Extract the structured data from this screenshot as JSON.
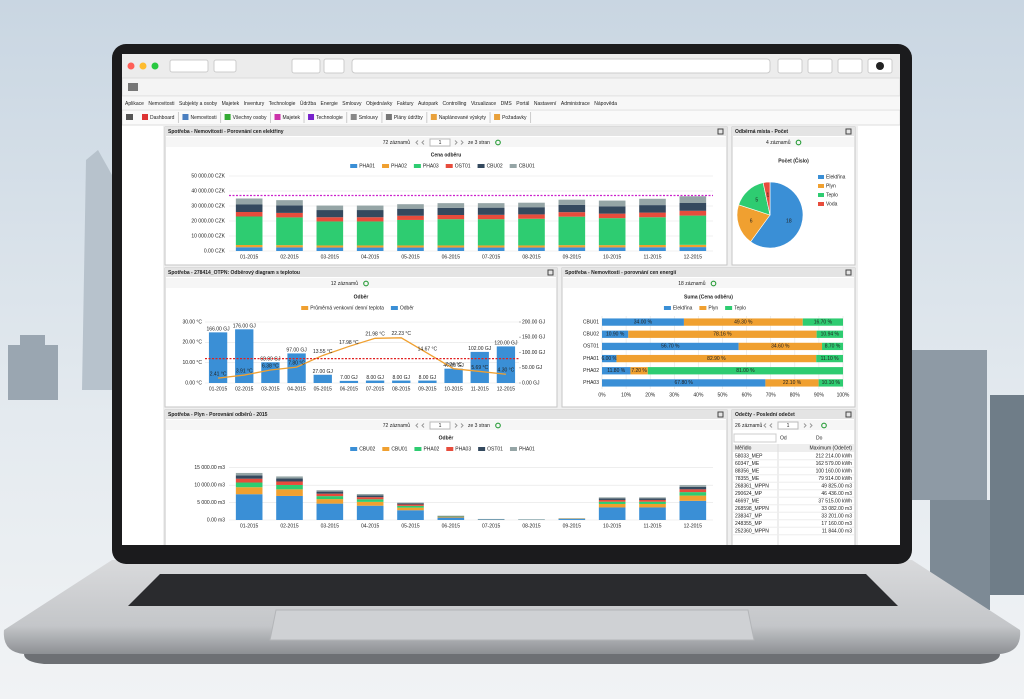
{
  "menu": [
    "Aplikace",
    "Nemovitosti",
    "Subjekty a osoby",
    "Majetek",
    "Inventury",
    "Technologie",
    "Údržba",
    "Energie",
    "Smlouvy",
    "Objednávky",
    "Faktury",
    "Autopark",
    "Controlling",
    "Vizualizace",
    "DMS",
    "Portál",
    "Nastavení",
    "Administrace",
    "Nápověda"
  ],
  "toolbar": [
    "Dashboard",
    "Nemovitosti",
    "Všechny osoby",
    "Majetek",
    "Technologie",
    "Smlouvy",
    "Plány údržby",
    "Naplánované výskyty",
    "Požadavky"
  ],
  "panels": [
    {
      "title": "Spotřeba - Nemovitosti - Porovnání cen elektřiny",
      "pager": {
        "count": "72 záznamů",
        "page": "1",
        "pages": "ze 3 stran"
      }
    },
    {
      "title": "Odběrná místa - Počet",
      "pager": {
        "count": "4 záznamů"
      }
    },
    {
      "title": "Spotřeba - 278414_OTPN: Odběrový diagram s teplotou",
      "pager": {
        "count": "12 záznamů"
      }
    },
    {
      "title": "Spotřeba - Nemovitosti - porovnání cen energií",
      "pager": {
        "count": "18 záznamů"
      }
    },
    {
      "title": "Spotřeba - Plyn - Porovnání odběrů - 2015",
      "pager": {
        "count": "72 záznamů",
        "page": "1",
        "pages": "ze 3 stran"
      }
    },
    {
      "title": "Odečty - Poslední odečet",
      "pager": {
        "count": "26 záznamů",
        "page": "1"
      }
    }
  ],
  "chart_data": [
    {
      "type": "bar",
      "stacked": true,
      "title": "Cena odběru",
      "categories": [
        "01-2015",
        "02-2015",
        "03-2015",
        "04-2015",
        "05-2015",
        "06-2015",
        "07-2015",
        "08-2015",
        "09-2015",
        "10-2015",
        "11-2015",
        "12-2015"
      ],
      "series": [
        {
          "name": "PHA01",
          "color": "#3a8fd6",
          "values": [
            2500,
            2400,
            2300,
            2300,
            2300,
            2300,
            2300,
            2300,
            2400,
            2400,
            2500,
            2600
          ]
        },
        {
          "name": "PHA02",
          "color": "#f0a030",
          "values": [
            1500,
            1500,
            1400,
            1400,
            1400,
            1400,
            1400,
            1400,
            1500,
            1500,
            1500,
            1500
          ]
        },
        {
          "name": "PHA03",
          "color": "#2ecc71",
          "values": [
            19000,
            18500,
            16000,
            16000,
            17000,
            17500,
            17500,
            17800,
            19000,
            18000,
            18500,
            19500
          ]
        },
        {
          "name": "OST01",
          "color": "#e74c3c",
          "values": [
            3000,
            3000,
            2800,
            2800,
            2800,
            2800,
            2900,
            2900,
            3000,
            3000,
            3100,
            3200
          ]
        },
        {
          "name": "CBU02",
          "color": "#34495e",
          "values": [
            5000,
            5000,
            4800,
            4800,
            4700,
            4700,
            4800,
            4800,
            4800,
            4900,
            5000,
            5200
          ]
        },
        {
          "name": "CBU01",
          "color": "#95a5a6",
          "values": [
            4000,
            3500,
            3000,
            3000,
            3000,
            3200,
            3000,
            3000,
            3500,
            3800,
            4200,
            4500
          ]
        }
      ],
      "ylim": [
        0,
        50000
      ],
      "yticks": [
        {
          "value": 0,
          "label": "0.00 CZK"
        },
        {
          "value": 10000,
          "label": "10 000.00 CZK"
        },
        {
          "value": 20000,
          "label": "20 000.00 CZK"
        },
        {
          "value": 30000,
          "label": "30 000.00 CZK"
        },
        {
          "value": 40000,
          "label": "40 000.00 CZK"
        },
        {
          "value": 50000,
          "label": "50 000.00 CZK"
        }
      ],
      "grid": true,
      "hline": 37000,
      "hline_color": "#cc22cc"
    },
    {
      "type": "pie",
      "title": "Počet (Číslo)",
      "categories": [
        "Elektřina",
        "Plyn",
        "Teplo",
        "Voda"
      ],
      "values": [
        18,
        6,
        5,
        1
      ],
      "colors": [
        "#3a8fd6",
        "#f0a030",
        "#2ecc71",
        "#e74c3c"
      ]
    },
    {
      "type": "combo",
      "title": "Odběr",
      "categories": [
        "01-2015",
        "02-2015",
        "03-2015",
        "04-2015",
        "05-2015",
        "06-2015",
        "07-2015",
        "08-2015",
        "09-2015",
        "10-2015",
        "11-2015",
        "12-2015"
      ],
      "series": [
        {
          "name": "Průměrná venkovní denní teplota",
          "color": "#f0a030",
          "kind": "line",
          "values": [
            2.41,
            3.91,
            6.38,
            7.8,
            13.55,
            17.98,
            21.98,
            22.23,
            14.67,
            7.04,
            5.69,
            4.3
          ],
          "value_labels": [
            "2.41 °C",
            "3.91 °C",
            "6.38 °C",
            "7.80 °C",
            "13.55 °C",
            "17.98 °C",
            "21.98 °C",
            "22.23 °C",
            "14.67 °C",
            "7.04 °C",
            "5.69 °C",
            "4.30 °C"
          ]
        },
        {
          "name": "Odběr",
          "color": "#3a8fd6",
          "kind": "bar",
          "axis": "y2",
          "values": [
            166,
            176,
            68,
            97,
            27,
            7,
            8,
            8,
            8,
            47,
            102,
            120
          ],
          "value_labels": [
            "166.00 GJ",
            "176.00 GJ",
            "68.00 GJ",
            "97.00 GJ",
            "27.00 GJ",
            "7.00 GJ",
            "8.00 GJ",
            "8.00 GJ",
            "8.00 GJ",
            "47.00 GJ",
            "102.00 GJ",
            "120.00 GJ"
          ]
        }
      ],
      "ylim": [
        0,
        30
      ],
      "yticks": [
        {
          "value": 0,
          "label": "0.00 °C"
        },
        {
          "value": 10,
          "label": "10.00 °C"
        },
        {
          "value": 20,
          "label": "20.00 °C"
        },
        {
          "value": 30,
          "label": "30.00 °C"
        }
      ],
      "y2lim": [
        0,
        200
      ],
      "y2ticks": [
        {
          "value": 0,
          "label": "0.00 GJ"
        },
        {
          "value": 50,
          "label": "50.00 GJ"
        },
        {
          "value": 100,
          "label": "100.00 GJ"
        },
        {
          "value": 150,
          "label": "150.00 GJ"
        },
        {
          "value": 200,
          "label": "200.00 GJ"
        }
      ],
      "grid": true,
      "hline": 12,
      "hline_color": "#e02020"
    },
    {
      "type": "hbar",
      "stacked": true,
      "title": "Suma (Cena odběru)",
      "categories": [
        "CBU01",
        "CBU02",
        "OST01",
        "PHA01",
        "PHA02",
        "PHA03"
      ],
      "series": [
        {
          "name": "Elektřina",
          "color": "#3a8fd6",
          "values": [
            34,
            10.9,
            56.7,
            6,
            11.8,
            67.8
          ],
          "value_labels": [
            "34.00 %",
            "10.90 %",
            "56.70 %",
            "6.00 %",
            "11.80 %",
            "67.80 %"
          ]
        },
        {
          "name": "Plyn",
          "color": "#f0a030",
          "values": [
            49.3,
            78.16,
            34.6,
            82.9,
            7.2,
            22.1
          ],
          "value_labels": [
            "49.30 %",
            "78.16 %",
            "34.60 %",
            "82.90 %",
            "7.20 %",
            "22.10 %"
          ]
        },
        {
          "name": "Teplo",
          "color": "#2ecc71",
          "values": [
            16.7,
            10.94,
            8.7,
            11.1,
            81,
            10.1
          ],
          "value_labels": [
            "16.70 %",
            "10.94 %",
            "8.70 %",
            "11.10 %",
            "81.00 %",
            "10.10 %"
          ]
        }
      ],
      "xlim": [
        0,
        100
      ],
      "xticks": [
        {
          "value": 0,
          "label": "0%"
        },
        {
          "value": 10,
          "label": "10%"
        },
        {
          "value": 20,
          "label": "20%"
        },
        {
          "value": 30,
          "label": "30%"
        },
        {
          "value": 40,
          "label": "40%"
        },
        {
          "value": 50,
          "label": "50%"
        },
        {
          "value": 60,
          "label": "60%"
        },
        {
          "value": 70,
          "label": "70%"
        },
        {
          "value": 80,
          "label": "80%"
        },
        {
          "value": 90,
          "label": "90%"
        },
        {
          "value": 100,
          "label": "100%"
        }
      ],
      "grid": true
    },
    {
      "type": "bar",
      "stacked": true,
      "title": "Odběr",
      "categories": [
        "01-2015",
        "02-2015",
        "03-2015",
        "04-2015",
        "05-2015",
        "06-2015",
        "07-2015",
        "08-2015",
        "09-2015",
        "10-2015",
        "11-2015",
        "12-2015"
      ],
      "series": [
        {
          "name": "CBU02",
          "color": "#3a8fd6",
          "values": [
            7400,
            6900,
            4700,
            4100,
            2800,
            700,
            170,
            110,
            280,
            3600,
            3600,
            5500
          ]
        },
        {
          "name": "CBU01",
          "color": "#f0a030",
          "values": [
            2000,
            1900,
            1300,
            1100,
            750,
            180,
            45,
            30,
            75,
            1000,
            1000,
            1500
          ]
        },
        {
          "name": "PHA02",
          "color": "#2ecc71",
          "values": [
            1350,
            1250,
            850,
            750,
            500,
            120,
            30,
            20,
            50,
            650,
            650,
            1000
          ]
        },
        {
          "name": "PHA03",
          "color": "#e74c3c",
          "values": [
            1100,
            1000,
            700,
            600,
            400,
            100,
            25,
            15,
            40,
            500,
            500,
            800
          ]
        },
        {
          "name": "OST01",
          "color": "#34495e",
          "values": [
            950,
            850,
            600,
            500,
            350,
            80,
            20,
            15,
            35,
            450,
            450,
            700
          ]
        },
        {
          "name": "PHA01",
          "color": "#95a5a6",
          "values": [
            700,
            600,
            400,
            400,
            200,
            50,
            10,
            10,
            20,
            300,
            300,
            500
          ]
        }
      ],
      "ylim": [
        0,
        17500
      ],
      "yticks": [
        {
          "value": 0,
          "label": "0.00 m3"
        },
        {
          "value": 5000,
          "label": "5 000.00 m3"
        },
        {
          "value": 10000,
          "label": "10 000.00 m3"
        },
        {
          "value": 15000,
          "label": "15 000.00 m3"
        }
      ],
      "grid": true
    }
  ],
  "table": {
    "filter": [
      "Od",
      "Do"
    ],
    "columns": [
      "Měřidlo",
      "Maximum (Odečet)"
    ],
    "rows": [
      [
        "58033_MEP",
        "212 214.00 kWh"
      ],
      [
        "60347_ME",
        "162 579.00 kWh"
      ],
      [
        "88356_ME",
        "100 160.00 kWh"
      ],
      [
        "78355_ME",
        "79 914.00 kWh"
      ],
      [
        "268361_MPPN",
        "49 825.00 m3"
      ],
      [
        "290624_MP",
        "46 436.00 m3"
      ],
      [
        "46697_ME",
        "37 515.00 kWh"
      ],
      [
        "268598_MPPN",
        "33 082.00 m3"
      ],
      [
        "238347_MP",
        "33 201.00 m3"
      ],
      [
        "248355_MP",
        "17 160.00 m3"
      ],
      [
        "252360_MPPN",
        "11 844.00 m3"
      ]
    ]
  }
}
